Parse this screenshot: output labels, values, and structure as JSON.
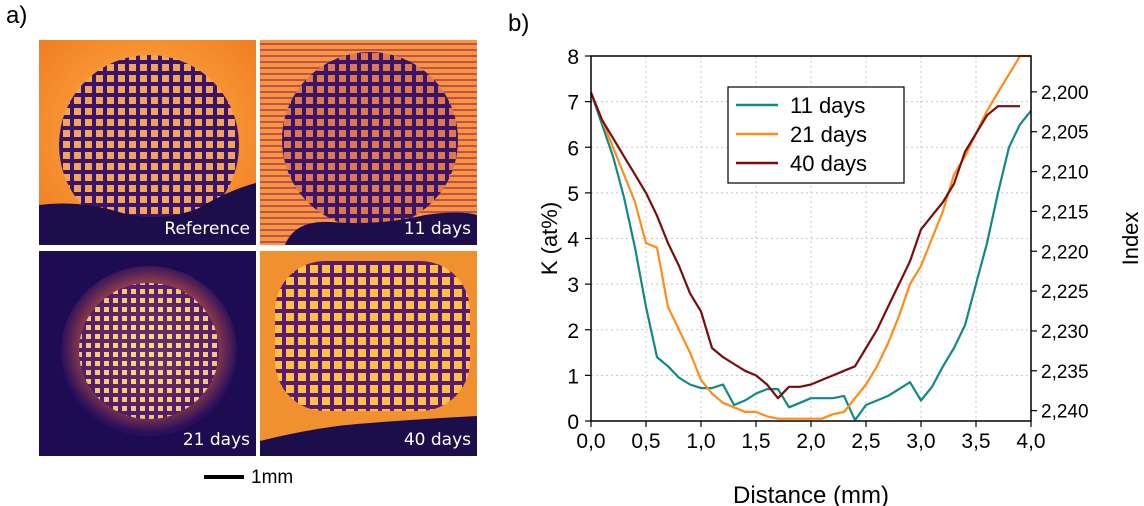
{
  "panel_a": {
    "label": "a)",
    "images": [
      {
        "caption": "Reference"
      },
      {
        "caption": "11 days"
      },
      {
        "caption": "21 days"
      },
      {
        "caption": "40 days"
      }
    ],
    "scale_bar_label": "1mm"
  },
  "panel_b": {
    "label": "b)"
  },
  "chart_data": {
    "type": "line",
    "xlabel": "Distance (mm)",
    "ylabel": "K (at%)",
    "y2label": "Index",
    "xlim": [
      0,
      4.0
    ],
    "ylim": [
      0,
      8
    ],
    "y2lim": [
      2.1955,
      2.2413
    ],
    "x_ticks": [
      "0,0",
      "0,5",
      "1,0",
      "1,5",
      "2,0",
      "2,5",
      "3,0",
      "3,5",
      "4,0"
    ],
    "y_ticks": [
      "0",
      "1",
      "2",
      "3",
      "4",
      "5",
      "6",
      "7",
      "8"
    ],
    "y2_ticks": [
      "2,200",
      "2,205",
      "2,210",
      "2,215",
      "2,220",
      "2,225",
      "2,230",
      "2,235",
      "2,240"
    ],
    "grid": true,
    "legend_position": "top-center",
    "series": [
      {
        "name": "11 days",
        "color": "#0f8a87",
        "x": [
          0,
          0.1,
          0.2,
          0.3,
          0.4,
          0.5,
          0.6,
          0.7,
          0.8,
          0.9,
          1.0,
          1.1,
          1.2,
          1.3,
          1.4,
          1.5,
          1.6,
          1.7,
          1.8,
          1.9,
          2.0,
          2.1,
          2.2,
          2.3,
          2.4,
          2.5,
          2.6,
          2.7,
          2.8,
          2.9,
          3.0,
          3.1,
          3.2,
          3.3,
          3.4,
          3.5,
          3.6,
          3.7,
          3.8,
          3.9,
          4.0
        ],
        "y": [
          7.2,
          6.5,
          5.8,
          4.9,
          3.8,
          2.5,
          1.4,
          1.2,
          0.95,
          0.8,
          0.72,
          0.72,
          0.8,
          0.35,
          0.45,
          0.6,
          0.7,
          0.7,
          0.3,
          0.4,
          0.5,
          0.5,
          0.5,
          0.55,
          0.02,
          0.35,
          0.45,
          0.55,
          0.7,
          0.85,
          0.45,
          0.75,
          1.2,
          1.6,
          2.1,
          3.0,
          3.9,
          5.0,
          6.0,
          6.5,
          6.8
        ]
      },
      {
        "name": "21 days",
        "color": "#ff8c1a",
        "x": [
          0,
          0.1,
          0.2,
          0.3,
          0.4,
          0.5,
          0.6,
          0.7,
          0.8,
          0.9,
          1.0,
          1.1,
          1.2,
          1.3,
          1.4,
          1.5,
          1.6,
          1.7,
          1.8,
          1.9,
          2.0,
          2.1,
          2.2,
          2.3,
          2.4,
          2.5,
          2.6,
          2.7,
          2.8,
          2.9,
          3.0,
          3.1,
          3.2,
          3.3,
          3.4,
          3.5,
          3.6,
          3.7,
          3.8,
          3.9,
          4.0
        ],
        "y": [
          7.2,
          6.6,
          6.0,
          5.4,
          4.8,
          3.9,
          3.8,
          2.5,
          2.0,
          1.5,
          0.9,
          0.6,
          0.4,
          0.3,
          0.2,
          0.2,
          0.1,
          0.05,
          0.05,
          0.05,
          0.05,
          0.05,
          0.15,
          0.2,
          0.5,
          0.8,
          1.2,
          1.7,
          2.3,
          3.0,
          3.4,
          4.0,
          4.6,
          5.4,
          5.8,
          6.3,
          6.8,
          7.2,
          7.6,
          8.0,
          8.0
        ]
      },
      {
        "name": "40 days",
        "color": "#7a0d0d",
        "x": [
          0,
          0.1,
          0.2,
          0.3,
          0.4,
          0.5,
          0.6,
          0.7,
          0.8,
          0.9,
          1.0,
          1.1,
          1.2,
          1.3,
          1.4,
          1.5,
          1.6,
          1.7,
          1.8,
          1.9,
          2.0,
          2.1,
          2.2,
          2.3,
          2.4,
          2.5,
          2.6,
          2.7,
          2.8,
          2.9,
          3.0,
          3.1,
          3.2,
          3.3,
          3.4,
          3.5,
          3.6,
          3.7,
          3.8,
          3.9
        ],
        "y": [
          7.2,
          6.6,
          6.2,
          5.8,
          5.4,
          5.0,
          4.5,
          3.9,
          3.4,
          2.8,
          2.4,
          1.6,
          1.4,
          1.25,
          1.1,
          1.0,
          0.8,
          0.5,
          0.75,
          0.75,
          0.8,
          0.9,
          1.0,
          1.1,
          1.2,
          1.6,
          2.0,
          2.5,
          3.0,
          3.5,
          4.2,
          4.5,
          4.8,
          5.2,
          5.9,
          6.3,
          6.7,
          6.9,
          6.9,
          6.9
        ]
      }
    ]
  }
}
